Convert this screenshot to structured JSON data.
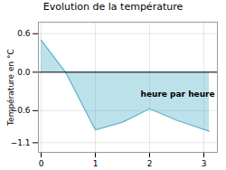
{
  "chart_data": {
    "type": "area",
    "title": "Evolution de la température",
    "ylabel": "Température en °C",
    "annotation": "heure par heure",
    "x": [
      0,
      0.45,
      1.0,
      1.5,
      2.0,
      2.5,
      3.1
    ],
    "values": [
      0.5,
      0.0,
      -0.9,
      -0.78,
      -0.57,
      -0.75,
      -0.92
    ],
    "xlim": [
      -0.05,
      3.25
    ],
    "ylim": [
      -1.25,
      0.78
    ],
    "xticks": [
      0,
      1,
      2,
      3
    ],
    "yticks": [
      -1.1,
      -0.6,
      {
        "value": 0,
        "label": "0.0"
      },
      0.6
    ],
    "grid": true,
    "color": "#5ab4cc"
  }
}
